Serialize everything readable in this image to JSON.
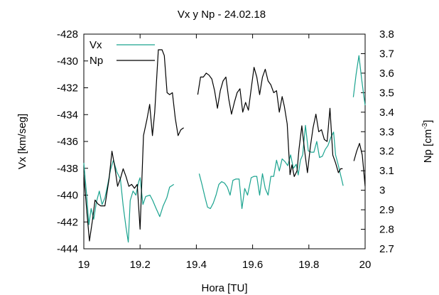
{
  "chart_data": {
    "type": "line",
    "title": "Vx y Np - 24.02.18",
    "xlabel": "Hora [TU]",
    "ylabel": "Vx [km/seg]",
    "y2label": "Np [cm",
    "y2label_exp": "-3",
    "y2label_close": "]",
    "xlim": [
      19,
      20
    ],
    "ylim": [
      -444,
      -428
    ],
    "y2lim": [
      2.7,
      3.8
    ],
    "x_ticks": [
      "19",
      "19.2",
      "19.4",
      "19.6",
      "19.8",
      "20"
    ],
    "y_ticks": [
      "-428",
      "-430",
      "-432",
      "-434",
      "-436",
      "-438",
      "-440",
      "-442",
      "-444"
    ],
    "y2_ticks": [
      "3.8",
      "3.7",
      "3.6",
      "3.5",
      "3.4",
      "3.3",
      "3.2",
      "3.1",
      "3",
      "2.9",
      "2.8",
      "2.7"
    ],
    "grid": false,
    "legend_position": "top-left",
    "series": [
      {
        "name": "Vx",
        "axis": "left",
        "color": "#1aa38f",
        "segments": [
          [
            [
              19.0,
              -437.6
            ],
            [
              19.01,
              -440.0
            ],
            [
              19.018,
              -442.2
            ],
            [
              19.026,
              -441.0
            ],
            [
              19.035,
              -441.8
            ],
            [
              19.045,
              -440.5
            ],
            [
              19.055,
              -439.7
            ],
            [
              19.065,
              -440.7
            ],
            [
              19.075,
              -440.2
            ],
            [
              19.085,
              -439.2
            ],
            [
              19.095,
              -438.1
            ],
            [
              19.105,
              -437.4
            ],
            [
              19.118,
              -438.3
            ],
            [
              19.13,
              -438.8
            ],
            [
              19.14,
              -440.8
            ],
            [
              19.15,
              -442.4
            ],
            [
              19.158,
              -443.5
            ],
            [
              19.165,
              -440.4
            ],
            [
              19.175,
              -439.7
            ],
            [
              19.185,
              -440.0
            ],
            [
              19.195,
              -439.0
            ],
            [
              19.2,
              -438.7
            ],
            [
              19.21,
              -440.7
            ],
            [
              19.22,
              -440.1
            ],
            [
              19.235,
              -440.0
            ],
            [
              19.245,
              -440.4
            ],
            [
              19.255,
              -440.9
            ],
            [
              19.27,
              -441.6
            ],
            [
              19.282,
              -440.8
            ],
            [
              19.295,
              -440.2
            ],
            [
              19.305,
              -439.4
            ],
            [
              19.32,
              -439.2
            ]
          ],
          [
            [
              19.41,
              -438.4
            ],
            [
              19.42,
              -439.2
            ],
            [
              19.43,
              -440.1
            ],
            [
              19.44,
              -440.9
            ],
            [
              19.45,
              -441.0
            ],
            [
              19.46,
              -440.6
            ],
            [
              19.47,
              -440.0
            ],
            [
              19.48,
              -439.2
            ],
            [
              19.49,
              -439.0
            ],
            [
              19.5,
              -439.1
            ],
            [
              19.51,
              -439.4
            ],
            [
              19.52,
              -440.0
            ],
            [
              19.53,
              -438.9
            ],
            [
              19.54,
              -438.8
            ],
            [
              19.552,
              -438.8
            ],
            [
              19.562,
              -441.0
            ],
            [
              19.572,
              -439.5
            ],
            [
              19.582,
              -440.0
            ],
            [
              19.595,
              -438.7
            ],
            [
              19.605,
              -438.6
            ],
            [
              19.615,
              -438.6
            ],
            [
              19.625,
              -440.0
            ],
            [
              19.635,
              -438.4
            ],
            [
              19.645,
              -439.5
            ],
            [
              19.655,
              -440.0
            ],
            [
              19.665,
              -438.6
            ],
            [
              19.675,
              -438.6
            ],
            [
              19.685,
              -437.4
            ],
            [
              19.695,
              -438.2
            ],
            [
              19.705,
              -437.3
            ],
            [
              19.715,
              -437.5
            ],
            [
              19.725,
              -437.8
            ],
            [
              19.735,
              -437.0
            ],
            [
              19.745,
              -438.0
            ],
            [
              19.755,
              -437.7
            ],
            [
              19.762,
              -438.5
            ],
            [
              19.77,
              -437.4
            ],
            [
              19.778,
              -437.0
            ],
            [
              19.788,
              -434.8
            ],
            [
              19.798,
              -436.7
            ],
            [
              19.808,
              -436.8
            ],
            [
              19.818,
              -436.8
            ],
            [
              19.828,
              -436.0
            ],
            [
              19.838,
              -437.2
            ],
            [
              19.848,
              -437.1
            ],
            [
              19.858,
              -436.6
            ],
            [
              19.868,
              -436.3
            ],
            [
              19.878,
              -435.7
            ],
            [
              19.888,
              -435.3
            ],
            [
              19.895,
              -437.0
            ],
            [
              19.905,
              -437.8
            ],
            [
              19.913,
              -438.5
            ],
            [
              19.922,
              -439.3
            ]
          ],
          [
            [
              19.958,
              -432.7
            ],
            [
              19.968,
              -431.0
            ],
            [
              19.978,
              -429.6
            ],
            [
              19.988,
              -431.4
            ],
            [
              19.996,
              -432.7
            ],
            [
              20.0,
              -433.3
            ]
          ]
        ]
      },
      {
        "name": "Np",
        "axis": "right",
        "color": "#000000",
        "segments": [
          [
            [
              19.0,
              3.08
            ],
            [
              19.01,
              2.9
            ],
            [
              19.02,
              2.74
            ],
            [
              19.03,
              2.84
            ],
            [
              19.04,
              2.95
            ],
            [
              19.05,
              2.93
            ],
            [
              19.06,
              2.92
            ],
            [
              19.075,
              2.92
            ],
            [
              19.09,
              3.06
            ],
            [
              19.1,
              3.2
            ],
            [
              19.11,
              3.12
            ],
            [
              19.12,
              3.02
            ],
            [
              19.13,
              3.06
            ],
            [
              19.14,
              3.11
            ],
            [
              19.15,
              3.07
            ],
            [
              19.16,
              3.02
            ],
            [
              19.17,
              3.03
            ],
            [
              19.18,
              3.01
            ],
            [
              19.19,
              3.03
            ],
            [
              19.2,
              2.8
            ],
            [
              19.212,
              3.28
            ],
            [
              19.224,
              3.36
            ],
            [
              19.234,
              3.44
            ],
            [
              19.244,
              3.28
            ],
            [
              19.252,
              3.4
            ],
            [
              19.265,
              3.72
            ],
            [
              19.278,
              3.72
            ],
            [
              19.286,
              3.69
            ],
            [
              19.296,
              3.5
            ],
            [
              19.305,
              3.49
            ],
            [
              19.315,
              3.5
            ],
            [
              19.325,
              3.37
            ],
            [
              19.335,
              3.28
            ],
            [
              19.345,
              3.31
            ],
            [
              19.355,
              3.32
            ]
          ],
          [
            [
              19.405,
              3.49
            ],
            [
              19.415,
              3.58
            ],
            [
              19.425,
              3.58
            ],
            [
              19.435,
              3.6
            ],
            [
              19.445,
              3.59
            ],
            [
              19.455,
              3.57
            ],
            [
              19.465,
              3.51
            ],
            [
              19.475,
              3.42
            ],
            [
              19.485,
              3.51
            ],
            [
              19.495,
              3.56
            ],
            [
              19.505,
              3.58
            ],
            [
              19.515,
              3.47
            ],
            [
              19.525,
              3.39
            ],
            [
              19.535,
              3.45
            ],
            [
              19.545,
              3.5
            ],
            [
              19.555,
              3.52
            ],
            [
              19.565,
              3.4
            ],
            [
              19.575,
              3.45
            ],
            [
              19.585,
              3.41
            ],
            [
              19.595,
              3.52
            ],
            [
              19.605,
              3.63
            ],
            [
              19.615,
              3.58
            ],
            [
              19.625,
              3.49
            ],
            [
              19.635,
              3.58
            ],
            [
              19.645,
              3.62
            ],
            [
              19.655,
              3.56
            ],
            [
              19.665,
              3.54
            ],
            [
              19.675,
              3.5
            ],
            [
              19.685,
              3.51
            ],
            [
              19.695,
              3.4
            ],
            [
              19.705,
              3.48
            ],
            [
              19.713,
              3.43
            ],
            [
              19.723,
              3.34
            ],
            [
              19.733,
              3.08
            ],
            [
              19.74,
              3.13
            ],
            [
              19.748,
              3.07
            ],
            [
              19.758,
              3.1
            ],
            [
              19.765,
              3.21
            ],
            [
              19.775,
              3.33
            ],
            [
              19.785,
              3.2
            ],
            [
              19.795,
              3.09
            ],
            [
              19.805,
              3.22
            ],
            [
              19.815,
              3.32
            ],
            [
              19.825,
              3.39
            ],
            [
              19.835,
              3.3
            ],
            [
              19.845,
              3.31
            ],
            [
              19.855,
              3.26
            ],
            [
              19.865,
              3.25
            ],
            [
              19.875,
              3.42
            ],
            [
              19.885,
              3.18
            ],
            [
              19.895,
              3.14
            ],
            [
              19.905,
              3.09
            ],
            [
              19.913,
              3.11
            ],
            [
              19.92,
              3.11
            ]
          ],
          [
            [
              19.96,
              3.15
            ],
            [
              19.97,
              3.2
            ],
            [
              19.98,
              3.24
            ],
            [
              19.99,
              3.18
            ],
            [
              20.0,
              3.02
            ]
          ]
        ]
      }
    ]
  }
}
